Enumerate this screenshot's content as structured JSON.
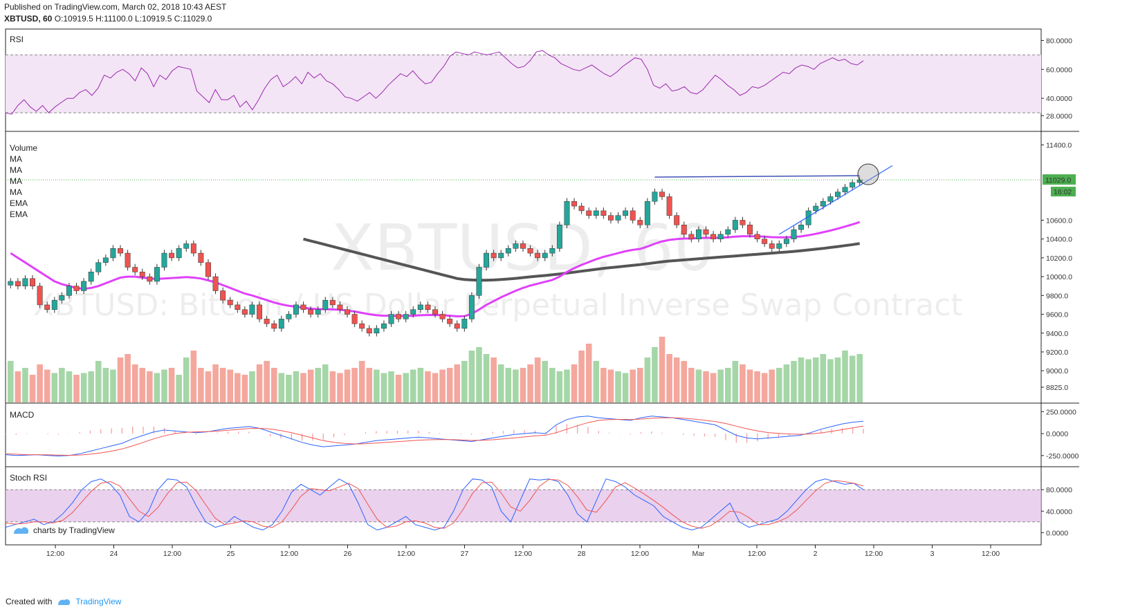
{
  "header": {
    "published": "Published on TradingView.com, March 02, 2018 10:43 AEST",
    "symbol": "XBTUSD, 60",
    "o": "O:10919.5",
    "h": "H:11100.0",
    "l": "L:10919.5",
    "c": "C:11029.0"
  },
  "watermark": {
    "big": "XBTUSD, 60",
    "desc": "XBTUSD: Bitcoin / US Dollar Perpetual Inverse Swap Contract"
  },
  "footer": {
    "created_with": "Created with",
    "brand": "TradingView",
    "charts_by": "charts by TradingView"
  },
  "colors": {
    "up": "#26a69a",
    "down": "#ef5350",
    "vol_up": "#a5d6a7",
    "vol_down": "#f4a79d",
    "ema_fast": "#e040fb",
    "sma_slow": "#555555",
    "rsi_line": "#9c27b0",
    "macd_line": "#2962ff",
    "signal_line": "#ef5350",
    "band": "#f3e5f5"
  },
  "chart_data": [
    {
      "type": "line",
      "title": "RSI",
      "yticks": [
        "80.0000",
        "60.0000",
        "40.0000",
        "28.0000"
      ],
      "ylim": [
        20,
        85
      ],
      "levels": [
        70,
        30
      ],
      "values": [
        30,
        29,
        35,
        39,
        34,
        31,
        35,
        30,
        34,
        37,
        40,
        40,
        44,
        46,
        42,
        47,
        56,
        54,
        58,
        60,
        57,
        52,
        61,
        57,
        48,
        56,
        53,
        59,
        62,
        61,
        60,
        45,
        41,
        37,
        46,
        39,
        39,
        42,
        34,
        38,
        32,
        39,
        47,
        53,
        56,
        48,
        51,
        55,
        50,
        58,
        54,
        57,
        52,
        50,
        46,
        41,
        40,
        38,
        41,
        44,
        40,
        44,
        49,
        53,
        57,
        55,
        59,
        54,
        50,
        51,
        57,
        62,
        69,
        72,
        71,
        70,
        72,
        71,
        70,
        71,
        72,
        68,
        64,
        61,
        62,
        66,
        72,
        73,
        70,
        68,
        64,
        62,
        60,
        59,
        61,
        63,
        60,
        57,
        55,
        58,
        62,
        65,
        68,
        67,
        60,
        49,
        47,
        50,
        45,
        46,
        48,
        44,
        43,
        46,
        51,
        56,
        53,
        49,
        46,
        42,
        44,
        48,
        47,
        49,
        52,
        55,
        58,
        57,
        61,
        63,
        62,
        60,
        64,
        66,
        68,
        66,
        67,
        64,
        63,
        66
      ],
      "yaxis_label": "RSI"
    },
    {
      "type": "candlestick",
      "title": "Volume",
      "legend": [
        "Volume",
        "MA",
        "MA",
        "MA",
        "MA",
        "EMA",
        "EMA"
      ],
      "yticks": [
        "11400.0",
        "10600.0",
        "10400.0",
        "10200.0",
        "10000.0",
        "9800.0",
        "9600.0",
        "9400.0",
        "9200.0",
        "9000.0",
        "8825.0"
      ],
      "ylim": [
        8700,
        11500
      ],
      "last_price": "11029.0",
      "countdown": "16:02",
      "resistance_level": 11029,
      "closes": [
        9950,
        9900,
        9980,
        9900,
        9700,
        9650,
        9750,
        9800,
        9900,
        9850,
        9950,
        10050,
        10150,
        10200,
        10300,
        10250,
        10100,
        10050,
        10000,
        9950,
        10100,
        10250,
        10200,
        10300,
        10350,
        10250,
        10150,
        10000,
        9850,
        9750,
        9700,
        9650,
        9600,
        9700,
        9550,
        9500,
        9450,
        9550,
        9600,
        9700,
        9650,
        9600,
        9650,
        9750,
        9700,
        9650,
        9600,
        9500,
        9450,
        9400,
        9450,
        9500,
        9600,
        9550,
        9600,
        9650,
        9700,
        9650,
        9600,
        9550,
        9500,
        9450,
        9550,
        9800,
        10100,
        10250,
        10200,
        10250,
        10300,
        10350,
        10300,
        10250,
        10200,
        10250,
        10300,
        10550,
        10800,
        10750,
        10700,
        10650,
        10700,
        10650,
        10600,
        10650,
        10700,
        10600,
        10550,
        10800,
        10900,
        10850,
        10650,
        10550,
        10450,
        10400,
        10500,
        10450,
        10400,
        10450,
        10500,
        10600,
        10550,
        10450,
        10400,
        10350,
        10300,
        10350,
        10400,
        10500,
        10550,
        10700,
        10750,
        10800,
        10850,
        10900,
        10950,
        11000,
        11029
      ],
      "volumes": [
        120,
        90,
        100,
        80,
        110,
        95,
        85,
        100,
        90,
        80,
        85,
        90,
        120,
        100,
        95,
        130,
        140,
        110,
        100,
        90,
        85,
        95,
        100,
        80,
        130,
        150,
        100,
        90,
        110,
        100,
        95,
        85,
        80,
        90,
        110,
        120,
        100,
        85,
        80,
        90,
        85,
        95,
        100,
        110,
        90,
        85,
        95,
        100,
        120,
        100,
        95,
        85,
        90,
        80,
        85,
        95,
        100,
        90,
        85,
        95,
        100,
        110,
        120,
        150,
        160,
        140,
        130,
        110,
        100,
        95,
        100,
        110,
        130,
        120,
        100,
        90,
        95,
        110,
        150,
        170,
        120,
        100,
        95,
        90,
        85,
        95,
        100,
        130,
        160,
        190,
        140,
        130,
        120,
        100,
        95,
        90,
        85,
        95,
        100,
        120,
        110,
        95,
        90,
        85,
        95,
        100,
        110,
        120,
        130,
        125,
        130,
        140,
        125,
        130,
        150,
        135,
        140
      ],
      "ema_fast": [
        10250,
        10200,
        10150,
        10100,
        10050,
        10000,
        9950,
        9920,
        9900,
        9880,
        9870,
        9880,
        9900,
        9930,
        9960,
        9990,
        10000,
        10000,
        9990,
        9980,
        9975,
        9980,
        9985,
        9990,
        9995,
        9990,
        9980,
        9960,
        9940,
        9910,
        9880,
        9850,
        9820,
        9800,
        9775,
        9750,
        9725,
        9705,
        9690,
        9680,
        9670,
        9660,
        9655,
        9655,
        9652,
        9648,
        9640,
        9630,
        9615,
        9600,
        9590,
        9585,
        9585,
        9582,
        9582,
        9585,
        9590,
        9592,
        9592,
        9590,
        9585,
        9578,
        9580,
        9605,
        9650,
        9700,
        9740,
        9780,
        9815,
        9850,
        9880,
        9905,
        9925,
        9945,
        9965,
        10000,
        10050,
        10090,
        10125,
        10155,
        10185,
        10210,
        10230,
        10250,
        10270,
        10285,
        10295,
        10320,
        10350,
        10375,
        10390,
        10400,
        10405,
        10405,
        10410,
        10412,
        10412,
        10414,
        10418,
        10425,
        10430,
        10430,
        10428,
        10425,
        10420,
        10418,
        10418,
        10422,
        10428,
        10440,
        10455,
        10472,
        10490,
        10510,
        10532,
        10555,
        10580
      ],
      "sma_slow": [
        null,
        null,
        null,
        null,
        null,
        null,
        null,
        null,
        null,
        null,
        null,
        null,
        null,
        null,
        null,
        null,
        null,
        null,
        null,
        null,
        null,
        null,
        null,
        null,
        null,
        null,
        null,
        null,
        null,
        null,
        null,
        null,
        null,
        null,
        null,
        null,
        null,
        null,
        null,
        null,
        10400,
        10380,
        10360,
        10340,
        10320,
        10300,
        10280,
        10260,
        10240,
        10220,
        10200,
        10180,
        10160,
        10140,
        10120,
        10100,
        10080,
        10060,
        10040,
        10020,
        10000,
        9980,
        9970,
        9965,
        9962,
        9962,
        9965,
        9970,
        9975,
        9982,
        9990,
        9998,
        10005,
        10012,
        10020,
        10028,
        10038,
        10048,
        10058,
        10068,
        10078,
        10088,
        10096,
        10104,
        10112,
        10120,
        10128,
        10138,
        10148,
        10158,
        10166,
        10172,
        10178,
        10184,
        10190,
        10196,
        10202,
        10208,
        10214,
        10220,
        10226,
        10232,
        10238,
        10244,
        10250,
        10256,
        10262,
        10268,
        10276,
        10284,
        10292,
        10300,
        10310,
        10320,
        10330,
        10340,
        10352
      ]
    },
    {
      "type": "line",
      "title": "MACD",
      "yticks": [
        "250.0000",
        "0.0000",
        "-250.0000"
      ],
      "ylim": [
        -330,
        300
      ],
      "macd": [
        -240,
        -250,
        -245,
        -240,
        -250,
        -255,
        -250,
        -230,
        -200,
        -170,
        -140,
        -110,
        -60,
        -20,
        20,
        40,
        30,
        20,
        10,
        20,
        40,
        60,
        70,
        80,
        60,
        20,
        -20,
        -60,
        -100,
        -130,
        -150,
        -140,
        -130,
        -120,
        -100,
        -80,
        -70,
        -60,
        -50,
        -40,
        -50,
        -60,
        -70,
        -80,
        -90,
        -70,
        -50,
        -30,
        -10,
        0,
        10,
        0,
        100,
        160,
        190,
        200,
        180,
        170,
        160,
        150,
        180,
        200,
        190,
        180,
        160,
        140,
        120,
        100,
        40,
        -20,
        -50,
        -60,
        -50,
        -40,
        -30,
        -20,
        10,
        50,
        80,
        110,
        130,
        140
      ],
      "signal": [
        -230,
        -235,
        -240,
        -240,
        -242,
        -245,
        -247,
        -244,
        -235,
        -220,
        -200,
        -175,
        -140,
        -100,
        -60,
        -25,
        0,
        15,
        20,
        22,
        28,
        38,
        48,
        58,
        60,
        52,
        35,
        10,
        -20,
        -50,
        -80,
        -100,
        -112,
        -118,
        -116,
        -108,
        -100,
        -92,
        -84,
        -75,
        -70,
        -68,
        -68,
        -72,
        -78,
        -76,
        -70,
        -60,
        -50,
        -38,
        -26,
        -18,
        10,
        50,
        90,
        125,
        150,
        160,
        162,
        160,
        165,
        175,
        180,
        180,
        175,
        165,
        152,
        138,
        115,
        85,
        55,
        30,
        12,
        2,
        -5,
        -8,
        -4,
        8,
        25,
        45,
        65,
        85
      ],
      "yaxis_label": "MACD"
    },
    {
      "type": "line",
      "title": "Stoch RSI",
      "yticks": [
        "80.0000",
        "40.0000",
        "0.0000"
      ],
      "ylim": [
        -15,
        115
      ],
      "levels": [
        80,
        20
      ],
      "k": [
        10,
        15,
        20,
        25,
        15,
        20,
        35,
        55,
        80,
        95,
        100,
        90,
        70,
        30,
        20,
        40,
        80,
        100,
        98,
        85,
        50,
        20,
        10,
        15,
        30,
        20,
        10,
        5,
        15,
        40,
        75,
        90,
        80,
        70,
        85,
        100,
        90,
        55,
        15,
        5,
        10,
        20,
        30,
        15,
        10,
        5,
        10,
        40,
        80,
        100,
        98,
        85,
        40,
        20,
        60,
        100,
        98,
        100,
        95,
        70,
        35,
        20,
        60,
        100,
        95,
        85,
        70,
        60,
        50,
        30,
        20,
        10,
        5,
        10,
        25,
        40,
        55,
        20,
        10,
        15,
        20,
        25,
        40,
        60,
        80,
        95,
        100,
        95,
        90,
        92,
        80
      ],
      "d": [
        18,
        16,
        17,
        20,
        20,
        18,
        23,
        37,
        57,
        77,
        92,
        95,
        87,
        63,
        40,
        30,
        47,
        73,
        93,
        94,
        78,
        52,
        27,
        15,
        18,
        22,
        20,
        12,
        10,
        20,
        43,
        68,
        82,
        80,
        78,
        85,
        92,
        82,
        53,
        25,
        10,
        12,
        20,
        22,
        18,
        10,
        8,
        18,
        43,
        73,
        93,
        94,
        74,
        48,
        40,
        60,
        86,
        99,
        98,
        88,
        67,
        42,
        38,
        60,
        85,
        93,
        83,
        72,
        60,
        47,
        33,
        20,
        12,
        8,
        13,
        25,
        40,
        38,
        28,
        15,
        15,
        20,
        28,
        42,
        60,
        78,
        92,
        97,
        95,
        92,
        87
      ],
      "yaxis_label": "Stoch RSI"
    }
  ],
  "xaxis": {
    "ticks": [
      "12:00",
      "24",
      "12:00",
      "25",
      "12:00",
      "26",
      "12:00",
      "27",
      "12:00",
      "28",
      "12:00",
      "Mar",
      "12:00",
      "2",
      "12:00",
      "3",
      "12:00"
    ]
  }
}
